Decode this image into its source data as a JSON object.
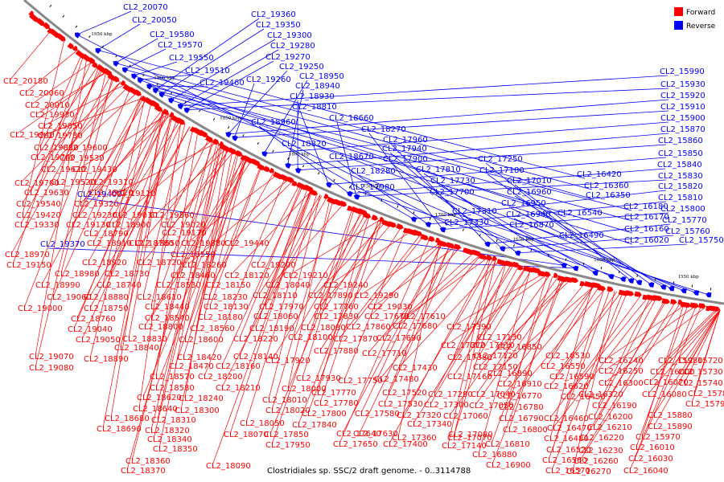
{
  "caption": "Clostridiales sp. SSC/2 draft genome. - 0..3114788",
  "legend": [
    {
      "label": "Forward",
      "color": "#ff0000"
    },
    {
      "label": "Reverse",
      "color": "#0000ff"
    }
  ],
  "colors": {
    "forward": "#ff0000",
    "reverse": "#0000ff",
    "backbone": "#888888"
  },
  "scale_labels": [
    "1550 kbp",
    "1600 kbp",
    "1650 kbp",
    "1700 kbp",
    "1750 kbp",
    "1800 kbp",
    "1850 kbp",
    "1900 kbp",
    "1950 kbp"
  ],
  "reverse_labels": [
    "CL2_20070",
    "CL2_20050",
    "CL2_19580",
    "CL2_19570",
    "CL2_19550",
    "CL2_19510",
    "CL2_19460",
    "CL2_19360",
    "CL2_19350",
    "CL2_19300",
    "CL2_19280",
    "CL2_19270",
    "CL2_19250",
    "CL2_19260",
    "CL2_18950",
    "CL2_18940",
    "CL2_18930",
    "CL2_18810",
    "CL2_18960",
    "CL2_18660",
    "CL2_18820",
    "CL2_18670",
    "CL2_18270",
    "CL2_17960",
    "CL2_17940",
    "CL2_17900",
    "CL2_17810",
    "CL2_18280",
    "CL2_17730",
    "CL2_17700",
    "CL2_17980",
    "CL2_17250",
    "CL2_17180",
    "CL2_17010",
    "CL2_16960",
    "CL2_16950",
    "CL2_16940",
    "CL2_16870",
    "CL2_17310",
    "CL2_17330",
    "CL2_16420",
    "CL2_16360",
    "CL2_16350",
    "CL2_16540",
    "CL2_16490",
    "CL2_16180",
    "CL2_16170",
    "CL2_16160",
    "CL2_16020",
    "CL2_15990",
    "CL2_15930",
    "CL2_15920",
    "CL2_15910",
    "CL2_15900",
    "CL2_15870",
    "CL2_15860",
    "CL2_15850",
    "CL2_15840",
    "CL2_15830",
    "CL2_15820",
    "CL2_15810",
    "CL2_15800",
    "CL2_15770",
    "CL2_15760",
    "CL2_15750",
    "CL2_19400",
    "CL2_19370"
  ],
  "forward_labels": [
    "CL2_20180",
    "CL2_20060",
    "CL2_20010",
    "CL2_19930",
    "CL2_19850",
    "CL2_19940",
    "CL2_19730",
    "CL2_19830",
    "CL2_19600",
    "CL2_19740",
    "CL2_19530",
    "CL2_19620",
    "CL2_19430",
    "CL2_19700",
    "CL2_19520",
    "CL2_19310",
    "CL2_19630",
    "CL2_19220",
    "CL2_19540",
    "CL2_19320",
    "CL2_19110",
    "CL2_19420",
    "CL2_19230",
    "CL2_19010",
    "CL2_19560",
    "CL2_19330",
    "CL2_19130",
    "CL2_18900",
    "CL2_19020",
    "CL2_18790",
    "CL2_19170",
    "CL2_18910",
    "CL2_18650",
    "CL2_19380",
    "CL2_18970",
    "CL2_18780",
    "CL2_18550",
    "CL2_19440",
    "CL2_19150",
    "CL2_18920",
    "CL2_18720",
    "CL2_18260",
    "CL2_19200",
    "CL2_18980",
    "CL2_18730",
    "CL2_18460",
    "CL2_18120",
    "CL2_19210",
    "CL2_18990",
    "CL2_18740",
    "CL2_18530",
    "CL2_18150",
    "CL2_18040",
    "CL2_19240",
    "CL2_19060",
    "CL2_18880",
    "CL2_18610",
    "CL2_18230",
    "CL2_18110",
    "CL2_17890",
    "CL2_19290",
    "CL2_19000",
    "CL2_18750",
    "CL2_18440",
    "CL2_18130",
    "CL2_17970",
    "CL2_17760",
    "CL2_19030",
    "CL2_18760",
    "CL2_18540",
    "CL2_18180",
    "CL2_18060",
    "CL2_17830",
    "CL2_17670",
    "CL2_17610",
    "CL2_19040",
    "CL2_18800",
    "CL2_18560",
    "CL2_18190",
    "CL2_18080",
    "CL2_17860",
    "CL2_17680",
    "CL2_17390",
    "CL2_19050",
    "CL2_18830",
    "CL2_18600",
    "CL2_18220",
    "CL2_18100",
    "CL2_17870",
    "CL2_17690",
    "CL2_17370",
    "CL2_17130",
    "CL2_18840",
    "CL2_18420",
    "CL2_18140",
    "CL2_17880",
    "CL2_17710",
    "CL2_17430",
    "CL2_17110",
    "CL2_19070",
    "CL2_18890",
    "CL2_18470",
    "CL2_18160",
    "CL2_17920",
    "CL2_17480",
    "CL2_17380",
    "CL2_17120",
    "CL2_16850",
    "CL2_19080",
    "CL2_18200",
    "CL2_17150",
    "CL2_16890",
    "CL2_18570",
    "CL2_17930",
    "CL2_17750",
    "CL2_17160",
    "CL2_16910",
    "CL2_18580",
    "CL2_18210",
    "CL2_18000",
    "CL2_17770",
    "CL2_17520",
    "CL2_17290",
    "CL2_17040",
    "CL2_16770",
    "CL2_18620",
    "CL2_18240",
    "CL2_18010",
    "CL2_17780",
    "CL2_17530",
    "CL2_17300",
    "CL2_17050",
    "CL2_16780",
    "CL2_18640",
    "CL2_18300",
    "CL2_18020",
    "CL2_17800",
    "CL2_17580",
    "CL2_17320",
    "CL2_17060",
    "CL2_16790",
    "CL2_18680",
    "CL2_18310",
    "CL2_18050",
    "CL2_17840",
    "CL2_17630",
    "CL2_17340",
    "CL2_17070",
    "CL2_16800",
    "CL2_18690",
    "CL2_18320",
    "CL2_18070",
    "CL2_17850",
    "CL2_17640",
    "CL2_17360",
    "CL2_17080",
    "CL2_16810",
    "CL2_18340",
    "CL2_17950",
    "CL2_17650",
    "CL2_17400",
    "CL2_17140",
    "CL2_16880",
    "CL2_18350",
    "CL2_16900",
    "CL2_18360",
    "CL2_18370",
    "CL2_18090",
    "CL2_16530",
    "CL2_16550",
    "CL2_16590",
    "CL2_16620",
    "CL2_16450",
    "CL2_16460",
    "CL2_16470",
    "CL2_16480",
    "CL2_16520",
    "CL2_16560",
    "CL2_16570",
    "CL2_16240",
    "CL2_16250",
    "CL2_16300",
    "CL2_16320",
    "CL2_16190",
    "CL2_16200",
    "CL2_16210",
    "CL2_16220",
    "CL2_16230",
    "CL2_16260",
    "CL2_16270",
    "CL2_15980",
    "CL2_16000",
    "CL2_16070",
    "CL2_16080",
    "CL2_15880",
    "CL2_15890",
    "CL2_15970",
    "CL2_16010",
    "CL2_16030",
    "CL2_16040",
    "CL2_15720",
    "CL2_15730",
    "CL2_15740",
    "CL2_15780",
    "CL2_15790"
  ]
}
